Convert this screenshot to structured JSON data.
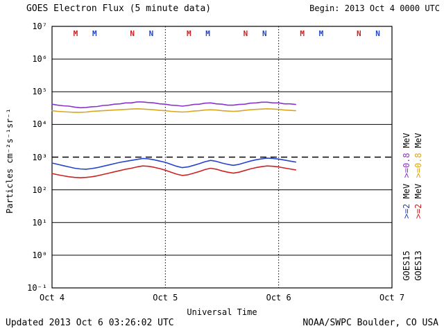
{
  "header": {
    "title": "GOES Electron Flux (5 minute data)",
    "begin_label": "Begin: 2013 Oct 4 0000 UTC"
  },
  "footer": {
    "updated": "Updated 2013 Oct  6 03:26:02 UTC",
    "source": "NOAA/SWPC Boulder, CO USA"
  },
  "chart_data": {
    "type": "line",
    "title": "GOES Electron Flux (5 minute data)",
    "xlabel": "Universal Time",
    "ylabel": "Particles cm⁻²s⁻¹sr⁻¹",
    "x_unit": "days since 2013 Oct 4 0000 UTC",
    "xlim": [
      0,
      3
    ],
    "ylog_range": [
      -1,
      7
    ],
    "grid": "horizontal solid per decade, dotted vertical per day",
    "threshold_log10": 3,
    "x_gridlines_t": [
      1,
      2
    ],
    "x_ticks": [
      {
        "t": 0,
        "label": "Oct 4"
      },
      {
        "t": 1,
        "label": "Oct 5"
      },
      {
        "t": 2,
        "label": "Oct 6"
      },
      {
        "t": 3,
        "label": "Oct 7"
      }
    ],
    "y_ticks": [
      {
        "exp": 7,
        "label": "10⁷"
      },
      {
        "exp": 6,
        "label": "10⁶"
      },
      {
        "exp": 5,
        "label": "10⁵"
      },
      {
        "exp": 4,
        "label": "10⁴"
      },
      {
        "exp": 3,
        "label": "10³"
      },
      {
        "exp": 2,
        "label": "10²"
      },
      {
        "exp": 1,
        "label": "10¹"
      },
      {
        "exp": 0,
        "label": "10⁰"
      },
      {
        "exp": -1,
        "label": "10⁻¹"
      }
    ],
    "t_days": [
      0.0,
      0.05,
      0.1,
      0.15,
      0.2,
      0.25,
      0.3,
      0.35,
      0.4,
      0.45,
      0.5,
      0.55,
      0.6,
      0.65,
      0.7,
      0.75,
      0.8,
      0.85,
      0.9,
      0.95,
      1.0,
      1.05,
      1.1,
      1.15,
      1.2,
      1.25,
      1.3,
      1.35,
      1.4,
      1.45,
      1.5,
      1.55,
      1.6,
      1.65,
      1.7,
      1.75,
      1.8,
      1.85,
      1.9,
      1.95,
      2.0,
      2.05,
      2.1,
      2.15
    ],
    "series": [
      {
        "name": "GOES15 >=0.8 MeV",
        "color": "#8833cc",
        "log10_flux": [
          4.62,
          4.59,
          4.57,
          4.56,
          4.53,
          4.51,
          4.52,
          4.54,
          4.55,
          4.58,
          4.59,
          4.62,
          4.63,
          4.66,
          4.66,
          4.69,
          4.69,
          4.67,
          4.66,
          4.63,
          4.62,
          4.59,
          4.58,
          4.56,
          4.58,
          4.61,
          4.62,
          4.65,
          4.66,
          4.63,
          4.62,
          4.59,
          4.59,
          4.61,
          4.62,
          4.65,
          4.66,
          4.68,
          4.68,
          4.66,
          4.66,
          4.63,
          4.63,
          4.61
        ]
      },
      {
        "name": "GOES13 >=0.8 MeV",
        "color": "#daa520",
        "log10_flux": [
          4.42,
          4.4,
          4.39,
          4.38,
          4.37,
          4.37,
          4.38,
          4.4,
          4.41,
          4.42,
          4.43,
          4.44,
          4.45,
          4.46,
          4.47,
          4.48,
          4.47,
          4.46,
          4.45,
          4.43,
          4.42,
          4.4,
          4.39,
          4.38,
          4.39,
          4.41,
          4.42,
          4.44,
          4.45,
          4.44,
          4.42,
          4.41,
          4.4,
          4.41,
          4.43,
          4.45,
          4.46,
          4.47,
          4.48,
          4.47,
          4.46,
          4.44,
          4.43,
          4.42
        ]
      },
      {
        "name": "GOES15 >=2 MeV",
        "color": "#2244cc",
        "log10_flux": [
          2.82,
          2.78,
          2.74,
          2.7,
          2.66,
          2.64,
          2.63,
          2.65,
          2.68,
          2.72,
          2.76,
          2.8,
          2.84,
          2.87,
          2.9,
          2.93,
          2.96,
          2.95,
          2.92,
          2.88,
          2.84,
          2.78,
          2.72,
          2.68,
          2.7,
          2.75,
          2.8,
          2.86,
          2.9,
          2.87,
          2.82,
          2.78,
          2.75,
          2.78,
          2.83,
          2.88,
          2.92,
          2.95,
          2.97,
          2.96,
          2.94,
          2.91,
          2.88,
          2.85
        ]
      },
      {
        "name": "GOES13 >=2 MeV",
        "color": "#cc2222",
        "log10_flux": [
          2.5,
          2.46,
          2.43,
          2.4,
          2.38,
          2.37,
          2.38,
          2.4,
          2.43,
          2.47,
          2.51,
          2.55,
          2.59,
          2.63,
          2.66,
          2.7,
          2.73,
          2.72,
          2.69,
          2.65,
          2.6,
          2.54,
          2.48,
          2.44,
          2.46,
          2.51,
          2.56,
          2.62,
          2.66,
          2.63,
          2.58,
          2.54,
          2.51,
          2.54,
          2.59,
          2.64,
          2.68,
          2.71,
          2.73,
          2.72,
          2.7,
          2.67,
          2.64,
          2.61
        ]
      }
    ],
    "satellite_markers": [
      {
        "t": 0.208,
        "label": "M",
        "satellite": "GOES13",
        "color": "#cc2222"
      },
      {
        "t": 0.375,
        "label": "M",
        "satellite": "GOES15",
        "color": "#2244cc"
      },
      {
        "t": 0.708,
        "label": "N",
        "satellite": "GOES13",
        "color": "#cc2222"
      },
      {
        "t": 0.875,
        "label": "N",
        "satellite": "GOES15",
        "color": "#2244cc"
      },
      {
        "t": 1.208,
        "label": "M",
        "satellite": "GOES13",
        "color": "#cc2222"
      },
      {
        "t": 1.375,
        "label": "M",
        "satellite": "GOES15",
        "color": "#2244cc"
      },
      {
        "t": 1.708,
        "label": "N",
        "satellite": "GOES13",
        "color": "#cc2222"
      },
      {
        "t": 1.875,
        "label": "N",
        "satellite": "GOES15",
        "color": "#2244cc"
      },
      {
        "t": 2.208,
        "label": "M",
        "satellite": "GOES13",
        "color": "#cc2222"
      },
      {
        "t": 2.375,
        "label": "M",
        "satellite": "GOES15",
        "color": "#2244cc"
      },
      {
        "t": 2.708,
        "label": "N",
        "satellite": "GOES13",
        "color": "#cc2222"
      },
      {
        "t": 2.875,
        "label": "N",
        "satellite": "GOES15",
        "color": "#2244cc"
      }
    ],
    "legend": {
      "goes15": {
        "satellite": "GOES15",
        "high": ">=0.8",
        "low": ">=2",
        "unit": "MeV"
      },
      "goes13": {
        "satellite": "GOES13",
        "high": ">=0.8",
        "low": ">=2",
        "unit": "MeV"
      }
    },
    "legend_position": "right margin, rotated",
    "colors": {
      "background": "#ffffff",
      "axis": "#000000"
    }
  }
}
